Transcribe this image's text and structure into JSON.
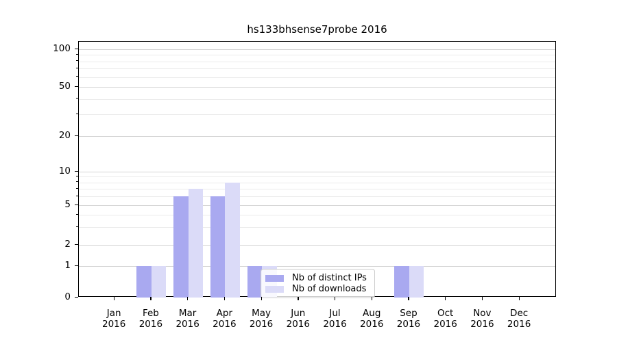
{
  "figure": {
    "title": "hs133bhsense7probe 2016"
  },
  "chart_data": {
    "type": "bar",
    "title": "hs133bhsense7probe 2016",
    "categories": [
      "Jan 2016",
      "Feb 2016",
      "Mar 2016",
      "Apr 2016",
      "May 2016",
      "Jun 2016",
      "Jul 2016",
      "Aug 2016",
      "Sep 2016",
      "Oct 2016",
      "Nov 2016",
      "Dec 2016"
    ],
    "x_tick_month_line": [
      "Jan",
      "Feb",
      "Mar",
      "Apr",
      "May",
      "Jun",
      "Jul",
      "Aug",
      "Sep",
      "Oct",
      "Nov",
      "Dec"
    ],
    "x_tick_year_line": "2016",
    "series": [
      {
        "name": "Nb of distinct IPs",
        "color": "#a9a9f0",
        "values": [
          0,
          1,
          6,
          6,
          1,
          0,
          0,
          0,
          1,
          0,
          0,
          0
        ]
      },
      {
        "name": "Nb of downloads",
        "color": "#dbdbf8",
        "values": [
          0,
          1,
          7,
          8,
          1,
          0,
          0,
          0,
          1,
          0,
          0,
          0
        ]
      }
    ],
    "yscale": "symlog",
    "yticks": [
      0,
      1,
      2,
      5,
      10,
      20,
      50,
      100
    ],
    "ytick_labels": [
      "0",
      "1",
      "2",
      "5",
      "10",
      "20",
      "50",
      "100"
    ],
    "minor_gridline_values": [
      3,
      4,
      6,
      7,
      8,
      9,
      30,
      40,
      60,
      70,
      80,
      90
    ],
    "grid": "both",
    "legend": {
      "entries": [
        "Nb of distinct IPs",
        "Nb of downloads"
      ],
      "location": "lower center, inside axes"
    },
    "colors": {
      "bar_distinct_ips": "#a9a9f0",
      "bar_downloads": "#dbdbf8",
      "grid_major": "#d4d4d4",
      "grid_minor": "#ebebeb",
      "spine": "#000000",
      "background": "#ffffff",
      "legend_border": "#cccccc"
    }
  }
}
